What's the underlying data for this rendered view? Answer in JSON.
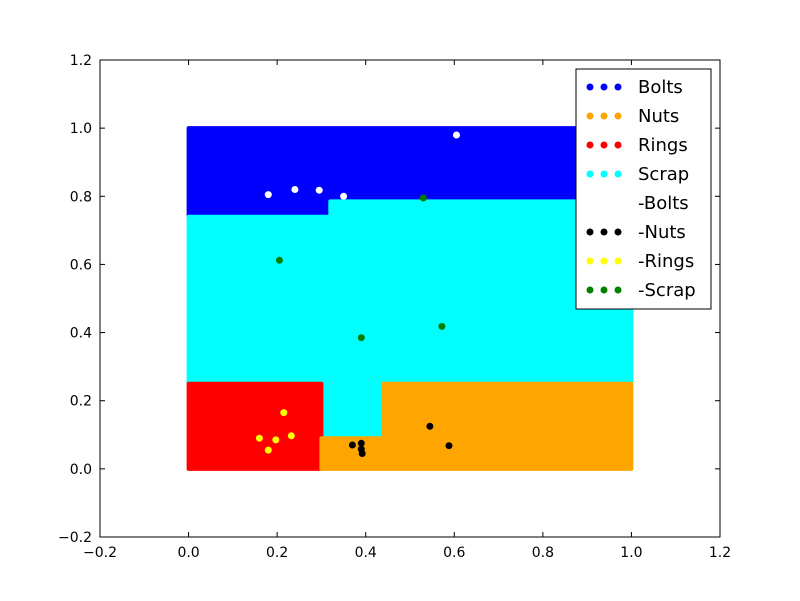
{
  "chart_data": {
    "type": "scatter",
    "xlim": [
      -0.2,
      1.2
    ],
    "ylim": [
      -0.2,
      1.2
    ],
    "x_ticks": [
      "−0.2",
      "0.0",
      "0.2",
      "0.4",
      "0.6",
      "0.8",
      "1.0",
      "1.2"
    ],
    "y_ticks": [
      "−0.2",
      "0.0",
      "0.2",
      "0.4",
      "0.6",
      "0.8",
      "1.0",
      "1.2"
    ],
    "x_tick_values": [
      -0.2,
      0.0,
      0.2,
      0.4,
      0.6,
      0.8,
      1.0,
      1.2
    ],
    "y_tick_values": [
      -0.2,
      0.0,
      0.2,
      0.4,
      0.6,
      0.8,
      1.0,
      1.2
    ],
    "grid": false,
    "legend_position": "top-right",
    "regions": [
      {
        "name": "Bolts",
        "color": "#0000ff",
        "polygon": [
          [
            0.0,
            0.74
          ],
          [
            0.32,
            0.74
          ],
          [
            0.32,
            0.785
          ],
          [
            1.0,
            0.785
          ],
          [
            1.0,
            1.0
          ],
          [
            0.0,
            1.0
          ]
        ]
      },
      {
        "name": "Scrap",
        "color": "#00ffff",
        "polygon": [
          [
            0.0,
            0.25
          ],
          [
            0.295,
            0.25
          ],
          [
            0.295,
            0.09
          ],
          [
            0.44,
            0.09
          ],
          [
            0.44,
            0.25
          ],
          [
            1.0,
            0.25
          ],
          [
            1.0,
            0.785
          ],
          [
            0.32,
            0.785
          ],
          [
            0.32,
            0.74
          ],
          [
            0.0,
            0.74
          ]
        ]
      },
      {
        "name": "Rings",
        "color": "#ff0000",
        "polygon": [
          [
            0.0,
            0.0
          ],
          [
            0.3,
            0.0
          ],
          [
            0.3,
            0.25
          ],
          [
            0.0,
            0.25
          ]
        ]
      },
      {
        "name": "Nuts",
        "color": "#ffa500",
        "polygon": [
          [
            0.3,
            0.0
          ],
          [
            1.0,
            0.0
          ],
          [
            1.0,
            0.25
          ],
          [
            0.44,
            0.25
          ],
          [
            0.44,
            0.09
          ],
          [
            0.3,
            0.09
          ]
        ]
      }
    ],
    "series": [
      {
        "name": "-Bolts",
        "color": "#ffffff",
        "points": [
          [
            0.18,
            0.805
          ],
          [
            0.24,
            0.82
          ],
          [
            0.295,
            0.818
          ],
          [
            0.35,
            0.8
          ],
          [
            0.605,
            0.98
          ]
        ]
      },
      {
        "name": "-Nuts",
        "color": "#000000",
        "points": [
          [
            0.37,
            0.07
          ],
          [
            0.39,
            0.075
          ],
          [
            0.39,
            0.058
          ],
          [
            0.392,
            0.045
          ],
          [
            0.545,
            0.125
          ],
          [
            0.588,
            0.068
          ]
        ]
      },
      {
        "name": "-Rings",
        "color": "#ffff00",
        "points": [
          [
            0.16,
            0.09
          ],
          [
            0.18,
            0.055
          ],
          [
            0.197,
            0.085
          ],
          [
            0.215,
            0.165
          ],
          [
            0.232,
            0.097
          ]
        ]
      },
      {
        "name": "-Scrap",
        "color": "#008000",
        "points": [
          [
            0.205,
            0.612
          ],
          [
            0.39,
            0.385
          ],
          [
            0.53,
            0.795
          ],
          [
            0.572,
            0.418
          ]
        ]
      }
    ],
    "legend": [
      {
        "label": "Bolts",
        "color": "#0000ff"
      },
      {
        "label": "Nuts",
        "color": "#ffa500"
      },
      {
        "label": "Rings",
        "color": "#ff0000"
      },
      {
        "label": "Scrap",
        "color": "#00ffff"
      },
      {
        "label": "-Bolts",
        "color": "#ffffff"
      },
      {
        "label": "-Nuts",
        "color": "#000000"
      },
      {
        "label": "-Rings",
        "color": "#ffff00"
      },
      {
        "label": "-Scrap",
        "color": "#008000"
      }
    ]
  }
}
